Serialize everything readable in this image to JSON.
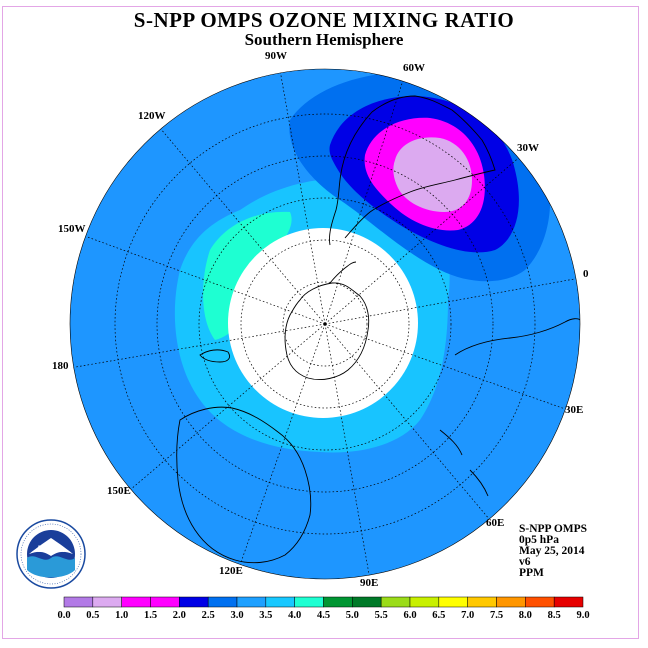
{
  "title": "S-NPP OMPS OZONE MIXING RATIO",
  "subtitle": "Southern Hemisphere",
  "info": {
    "instrument": "S-NPP OMPS",
    "level": "0p5 hPa",
    "date": "May 25, 2014",
    "version": "v6",
    "units": "PPM"
  },
  "logo_text": "NOAA",
  "lon_labels": [
    {
      "text": "90W"
    },
    {
      "text": "60W"
    },
    {
      "text": "30W"
    },
    {
      "text": "0"
    },
    {
      "text": "30E"
    },
    {
      "text": "60E"
    },
    {
      "text": "90E"
    },
    {
      "text": "120E"
    },
    {
      "text": "150E"
    },
    {
      "text": "180"
    },
    {
      "text": "150W"
    },
    {
      "text": "120W"
    }
  ],
  "colorbar": {
    "ticks": [
      "0.0",
      "0.5",
      "1.0",
      "1.5",
      "2.0",
      "2.5",
      "3.0",
      "3.5",
      "4.0",
      "4.5",
      "5.0",
      "5.5",
      "6.0",
      "6.5",
      "7.0",
      "7.5",
      "8.0",
      "8.5",
      "9.0"
    ],
    "colors": [
      "#b27ae6",
      "#dcaaf0",
      "#ff00ff",
      "#ff00ff",
      "#0000e6",
      "#0070f0",
      "#1ea0ff",
      "#18c8ff",
      "#1effd2",
      "#009632",
      "#007a28",
      "#9bdc19",
      "#c8f000",
      "#ffff00",
      "#ffc800",
      "#ff9600",
      "#ff5000",
      "#e60000",
      "#8c5a46"
    ]
  },
  "field_colors": {
    "background": "#1e96ff",
    "low": "#18c4ff",
    "cyan": "#1effd2",
    "polar_night": "#ffffff",
    "band_2_5": "#0070f0",
    "band_2_0": "#0000e6",
    "band_1_0": "#ff00ff",
    "band_0_5": "#dcaaf0"
  }
}
